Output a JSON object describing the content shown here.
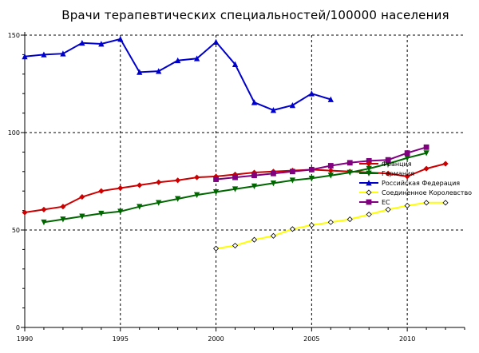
{
  "chart_data": {
    "type": "line",
    "title": "Врачи терапевтических специальностей/100000 населения",
    "xlabel": "",
    "ylabel": "",
    "xlim": [
      1990,
      2013
    ],
    "ylim": [
      0,
      150
    ],
    "x_ticks": [
      1990,
      1995,
      2000,
      2005,
      2010
    ],
    "y_ticks": [
      0,
      50,
      100,
      150
    ],
    "grid": true,
    "legend_position": "right",
    "series": [
      {
        "name": "Франция",
        "color": "#cc0000",
        "marker": "diamond",
        "points": [
          [
            1990,
            59
          ],
          [
            1991,
            60.5
          ],
          [
            1992,
            62
          ],
          [
            1993,
            67
          ],
          [
            1994,
            70
          ],
          [
            1995,
            71.5
          ],
          [
            1996,
            73
          ],
          [
            1997,
            74.5
          ],
          [
            1998,
            75.5
          ],
          [
            1999,
            77
          ],
          [
            2000,
            77.5
          ],
          [
            2001,
            78.5
          ],
          [
            2002,
            79.5
          ],
          [
            2003,
            80
          ],
          [
            2004,
            80.5
          ],
          [
            2005,
            81
          ],
          [
            2006,
            80.5
          ],
          [
            2007,
            80
          ],
          [
            2008,
            79.5
          ],
          [
            2009,
            79
          ],
          [
            2010,
            77.5
          ],
          [
            2011,
            81.5
          ],
          [
            2012,
            84
          ]
        ]
      },
      {
        "name": "Германия",
        "color": "#006600",
        "marker": "triangle-down",
        "points": [
          [
            1991,
            54
          ],
          [
            1992,
            55.5
          ],
          [
            1993,
            57
          ],
          [
            1994,
            58.5
          ],
          [
            1995,
            59.5
          ],
          [
            1996,
            62
          ],
          [
            1997,
            64
          ],
          [
            1998,
            66
          ],
          [
            1999,
            68
          ],
          [
            2000,
            69.5
          ],
          [
            2001,
            71
          ],
          [
            2002,
            72.5
          ],
          [
            2003,
            74
          ],
          [
            2004,
            75.5
          ],
          [
            2005,
            76.5
          ],
          [
            2006,
            78
          ],
          [
            2007,
            79.5
          ],
          [
            2008,
            81.5
          ],
          [
            2009,
            84
          ],
          [
            2010,
            87
          ],
          [
            2011,
            89.5
          ]
        ]
      },
      {
        "name": "Российская Федерация",
        "color": "#0000cc",
        "marker": "triangle-up",
        "points": [
          [
            1990,
            139
          ],
          [
            1991,
            140
          ],
          [
            1992,
            140.5
          ],
          [
            1993,
            146
          ],
          [
            1994,
            145.5
          ],
          [
            1995,
            148
          ],
          [
            1996,
            131
          ],
          [
            1997,
            131.5
          ],
          [
            1998,
            137
          ],
          [
            1999,
            138
          ],
          [
            2000,
            146.5
          ],
          [
            2001,
            135
          ],
          [
            2002,
            115.5
          ],
          [
            2003,
            111.5
          ],
          [
            2004,
            114
          ],
          [
            2005,
            120
          ],
          [
            2006,
            117
          ]
        ]
      },
      {
        "name": "Соединенное Королевство",
        "color": "#ffff00",
        "marker": "diamond-open",
        "points": [
          [
            2000,
            40.5
          ],
          [
            2001,
            42
          ],
          [
            2002,
            45
          ],
          [
            2003,
            47
          ],
          [
            2004,
            50.5
          ],
          [
            2005,
            52.5
          ],
          [
            2006,
            54
          ],
          [
            2007,
            55.5
          ],
          [
            2008,
            58
          ],
          [
            2009,
            60.5
          ],
          [
            2010,
            62.5
          ],
          [
            2011,
            64
          ],
          [
            2012,
            64
          ]
        ]
      },
      {
        "name": "ЕС",
        "color": "#800080",
        "marker": "square",
        "points": [
          [
            2000,
            76
          ],
          [
            2001,
            77
          ],
          [
            2002,
            78
          ],
          [
            2003,
            79
          ],
          [
            2004,
            80
          ],
          [
            2005,
            81
          ],
          [
            2006,
            83
          ],
          [
            2007,
            84.5
          ],
          [
            2008,
            85.5
          ],
          [
            2009,
            86
          ],
          [
            2010,
            89.5
          ],
          [
            2011,
            92.5
          ]
        ]
      }
    ]
  }
}
